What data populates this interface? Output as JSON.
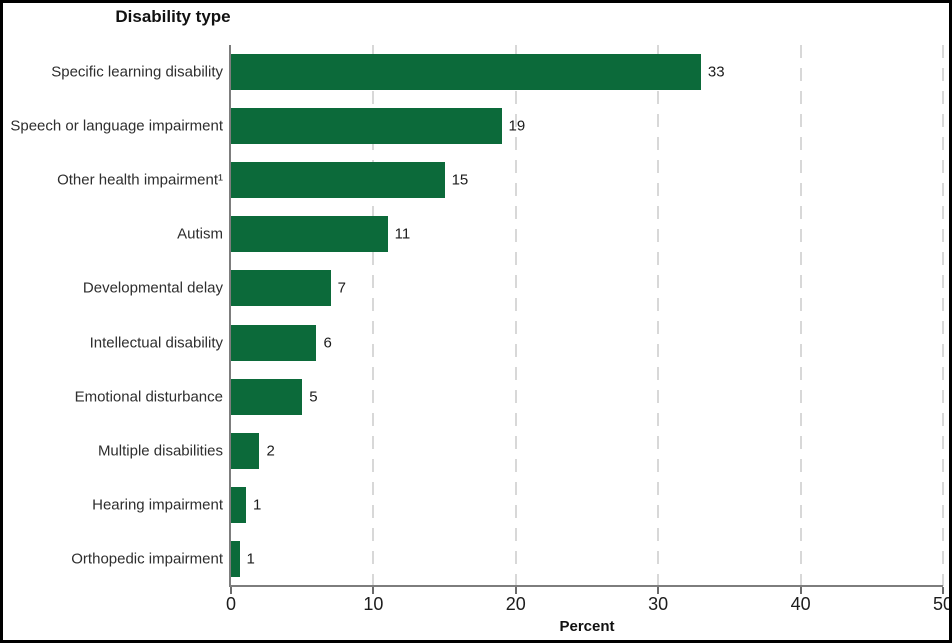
{
  "figure": {
    "title": "Disability type",
    "xlabel": "Percent"
  },
  "chart_data": {
    "type": "bar",
    "orientation": "horizontal",
    "title": "Disability type",
    "xlabel": "Percent",
    "xlim": [
      0,
      50
    ],
    "x_ticks": [
      "0",
      "10",
      "20",
      "30",
      "40",
      "50"
    ],
    "grid": "vertical dashed light-gray gridlines at 10, 20, 30, 40, 50",
    "legend": "none",
    "bar_color": "#0c6a3a",
    "categories": [
      "Specific learning disability",
      "Speech or language impairment",
      "Other health impairment¹",
      "Autism",
      "Developmental delay",
      "Intellectual disability",
      "Emotional disturbance",
      "Multiple disabilities",
      "Hearing impairment",
      "Orthopedic impairment"
    ],
    "values": [
      33,
      19,
      15,
      11,
      7,
      6,
      5,
      2,
      1,
      1
    ],
    "value_labels": [
      "33",
      "19",
      "15",
      "11",
      "7",
      "6",
      "5",
      "2",
      "1",
      "1"
    ],
    "bar_lengths_pct": [
      33,
      19,
      15,
      11,
      7,
      6,
      5,
      2,
      1.05,
      0.6
    ]
  }
}
